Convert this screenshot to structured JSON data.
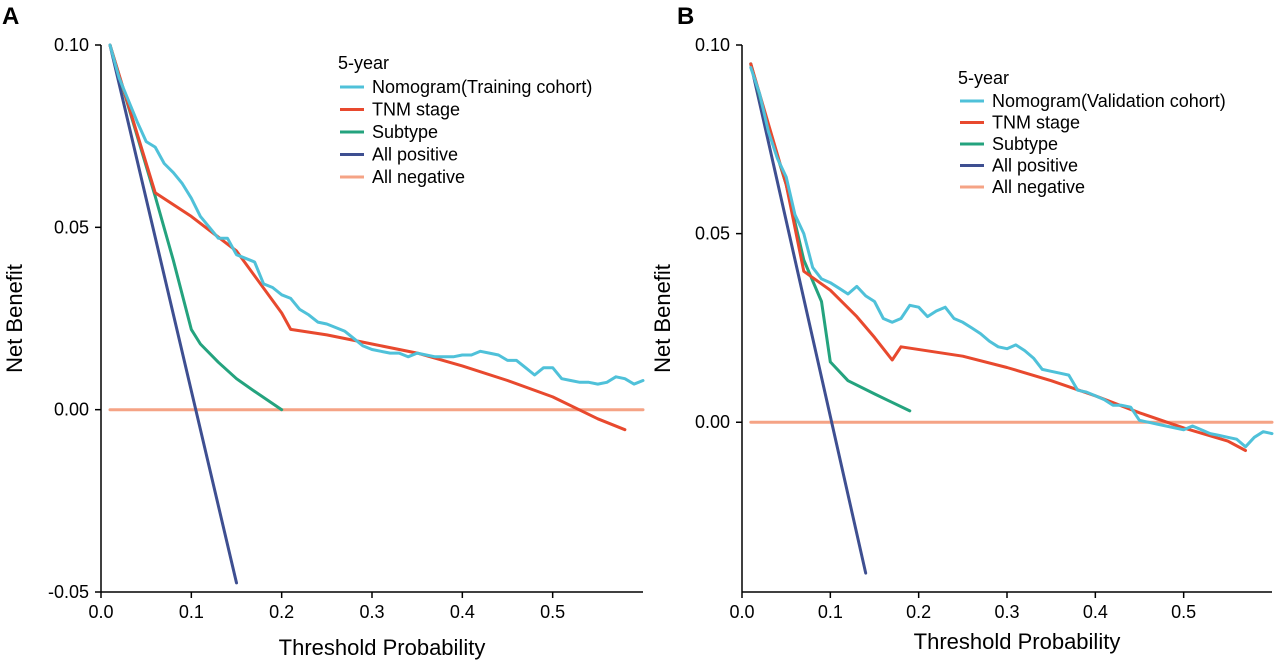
{
  "chart_data": [
    {
      "type": "line",
      "panel_label": "A",
      "title": "",
      "xlabel": "Threshold Probability",
      "ylabel": "Net Benefit",
      "xlim": [
        0,
        0.6
      ],
      "ylim": [
        -0.05,
        0.1
      ],
      "xticks": [
        0.0,
        0.1,
        0.2,
        0.3,
        0.4,
        0.5
      ],
      "xtick_labels": [
        "0.0",
        "0.1",
        "0.2",
        "0.3",
        "0.4",
        "0.5"
      ],
      "yticks": [
        -0.05,
        0.0,
        0.05,
        0.1
      ],
      "ytick_labels": [
        "-0.05",
        "0.00",
        "0.05",
        "0.10"
      ],
      "legend_title": "5-year",
      "legend_position": "top-right",
      "series": [
        {
          "name": "Nomogram(Training cohort)",
          "color": "#4FC1D9",
          "points": [
            [
              0.01,
              0.1
            ],
            [
              0.02,
              0.091
            ],
            [
              0.03,
              0.085
            ],
            [
              0.04,
              0.079
            ],
            [
              0.05,
              0.0735
            ],
            [
              0.06,
              0.072
            ],
            [
              0.07,
              0.0675
            ],
            [
              0.08,
              0.065
            ],
            [
              0.09,
              0.062
            ],
            [
              0.1,
              0.058
            ],
            [
              0.11,
              0.053
            ],
            [
              0.12,
              0.05
            ],
            [
              0.13,
              0.047
            ],
            [
              0.14,
              0.047
            ],
            [
              0.15,
              0.0425
            ],
            [
              0.16,
              0.0415
            ],
            [
              0.17,
              0.0405
            ],
            [
              0.18,
              0.0345
            ],
            [
              0.19,
              0.0335
            ],
            [
              0.2,
              0.0315
            ],
            [
              0.21,
              0.0305
            ],
            [
              0.22,
              0.0275
            ],
            [
              0.23,
              0.026
            ],
            [
              0.24,
              0.024
            ],
            [
              0.25,
              0.0235
            ],
            [
              0.26,
              0.0225
            ],
            [
              0.27,
              0.0215
            ],
            [
              0.28,
              0.0195
            ],
            [
              0.29,
              0.0175
            ],
            [
              0.3,
              0.0165
            ],
            [
              0.31,
              0.016
            ],
            [
              0.32,
              0.0155
            ],
            [
              0.33,
              0.0155
            ],
            [
              0.34,
              0.0145
            ],
            [
              0.35,
              0.0155
            ],
            [
              0.36,
              0.015
            ],
            [
              0.37,
              0.0145
            ],
            [
              0.38,
              0.0145
            ],
            [
              0.39,
              0.0145
            ],
            [
              0.4,
              0.015
            ],
            [
              0.41,
              0.015
            ],
            [
              0.42,
              0.016
            ],
            [
              0.43,
              0.0155
            ],
            [
              0.44,
              0.015
            ],
            [
              0.45,
              0.0135
            ],
            [
              0.46,
              0.0135
            ],
            [
              0.47,
              0.0115
            ],
            [
              0.48,
              0.0095
            ],
            [
              0.49,
              0.0115
            ],
            [
              0.5,
              0.0115
            ],
            [
              0.51,
              0.0085
            ],
            [
              0.52,
              0.008
            ],
            [
              0.53,
              0.0075
            ],
            [
              0.54,
              0.0075
            ],
            [
              0.55,
              0.007
            ],
            [
              0.56,
              0.0075
            ],
            [
              0.57,
              0.009
            ],
            [
              0.58,
              0.0085
            ],
            [
              0.59,
              0.007
            ],
            [
              0.6,
              0.008
            ]
          ]
        },
        {
          "name": "TNM stage",
          "color": "#E8492E",
          "points": [
            [
              0.01,
              0.1
            ],
            [
              0.06,
              0.0595
            ],
            [
              0.1,
              0.053
            ],
            [
              0.15,
              0.0435
            ],
            [
              0.2,
              0.0265
            ],
            [
              0.21,
              0.022
            ],
            [
              0.25,
              0.0205
            ],
            [
              0.3,
              0.018
            ],
            [
              0.35,
              0.0155
            ],
            [
              0.4,
              0.012
            ],
            [
              0.45,
              0.008
            ],
            [
              0.5,
              0.0035
            ],
            [
              0.55,
              -0.0025
            ],
            [
              0.58,
              -0.0055
            ]
          ]
        },
        {
          "name": "Subtype",
          "color": "#24A37E",
          "points": [
            [
              0.01,
              0.1
            ],
            [
              0.06,
              0.0585
            ],
            [
              0.08,
              0.041
            ],
            [
              0.1,
              0.022
            ],
            [
              0.11,
              0.018
            ],
            [
              0.13,
              0.013
            ],
            [
              0.15,
              0.0085
            ],
            [
              0.17,
              0.005
            ],
            [
              0.2,
              0.0
            ]
          ]
        },
        {
          "name": "All positive",
          "color": "#3E4F91",
          "points": [
            [
              0.01,
              0.1
            ],
            [
              0.15,
              -0.0475
            ]
          ]
        },
        {
          "name": "All negative",
          "color": "#F5A385",
          "points": [
            [
              0.01,
              0.0
            ],
            [
              0.6,
              0.0
            ]
          ]
        }
      ]
    },
    {
      "type": "line",
      "panel_label": "B",
      "title": "",
      "xlabel": "Threshold Probability",
      "ylabel": "Net Benefit",
      "xlim": [
        0,
        0.6
      ],
      "ylim": [
        -0.045,
        0.1
      ],
      "xticks": [
        0.0,
        0.1,
        0.2,
        0.3,
        0.4,
        0.5
      ],
      "xtick_labels": [
        "0.0",
        "0.1",
        "0.2",
        "0.3",
        "0.4",
        "0.5"
      ],
      "yticks": [
        0.0,
        0.05,
        0.1
      ],
      "ytick_labels": [
        "0.00",
        "0.05",
        "0.10"
      ],
      "legend_title": "5-year",
      "legend_position": "top-right",
      "series": [
        {
          "name": "Nomogram(Validation cohort)",
          "color": "#4FC1D9",
          "points": [
            [
              0.01,
              0.094
            ],
            [
              0.02,
              0.087
            ],
            [
              0.03,
              0.077
            ],
            [
              0.04,
              0.07
            ],
            [
              0.05,
              0.065
            ],
            [
              0.06,
              0.055
            ],
            [
              0.07,
              0.05
            ],
            [
              0.08,
              0.041
            ],
            [
              0.09,
              0.038
            ],
            [
              0.1,
              0.037
            ],
            [
              0.11,
              0.0355
            ],
            [
              0.12,
              0.034
            ],
            [
              0.13,
              0.036
            ],
            [
              0.14,
              0.0335
            ],
            [
              0.15,
              0.032
            ],
            [
              0.16,
              0.0275
            ],
            [
              0.17,
              0.0265
            ],
            [
              0.18,
              0.0275
            ],
            [
              0.19,
              0.031
            ],
            [
              0.2,
              0.0305
            ],
            [
              0.21,
              0.028
            ],
            [
              0.22,
              0.0295
            ],
            [
              0.23,
              0.0305
            ],
            [
              0.24,
              0.0275
            ],
            [
              0.25,
              0.0265
            ],
            [
              0.26,
              0.025
            ],
            [
              0.27,
              0.0235
            ],
            [
              0.28,
              0.0215
            ],
            [
              0.29,
              0.02
            ],
            [
              0.3,
              0.0195
            ],
            [
              0.31,
              0.0205
            ],
            [
              0.32,
              0.019
            ],
            [
              0.33,
              0.017
            ],
            [
              0.34,
              0.014
            ],
            [
              0.35,
              0.0135
            ],
            [
              0.36,
              0.013
            ],
            [
              0.37,
              0.0125
            ],
            [
              0.38,
              0.0085
            ],
            [
              0.39,
              0.008
            ],
            [
              0.4,
              0.007
            ],
            [
              0.41,
              0.006
            ],
            [
              0.42,
              0.0045
            ],
            [
              0.43,
              0.0045
            ],
            [
              0.44,
              0.004
            ],
            [
              0.45,
              0.0005
            ],
            [
              0.46,
              0.0
            ],
            [
              0.47,
              -0.0005
            ],
            [
              0.48,
              -0.001
            ],
            [
              0.49,
              -0.0015
            ],
            [
              0.5,
              -0.002
            ],
            [
              0.51,
              -0.001
            ],
            [
              0.52,
              -0.002
            ],
            [
              0.53,
              -0.003
            ],
            [
              0.54,
              -0.0035
            ],
            [
              0.55,
              -0.004
            ],
            [
              0.56,
              -0.0045
            ],
            [
              0.57,
              -0.0065
            ],
            [
              0.58,
              -0.004
            ],
            [
              0.59,
              -0.0025
            ],
            [
              0.6,
              -0.003
            ]
          ]
        },
        {
          "name": "TNM stage",
          "color": "#E8492E",
          "points": [
            [
              0.01,
              0.095
            ],
            [
              0.05,
              0.063
            ],
            [
              0.07,
              0.04
            ],
            [
              0.1,
              0.035
            ],
            [
              0.13,
              0.028
            ],
            [
              0.15,
              0.0225
            ],
            [
              0.17,
              0.0165
            ],
            [
              0.18,
              0.02
            ],
            [
              0.25,
              0.0175
            ],
            [
              0.3,
              0.0145
            ],
            [
              0.35,
              0.011
            ],
            [
              0.4,
              0.007
            ],
            [
              0.45,
              0.0025
            ],
            [
              0.5,
              -0.0015
            ],
            [
              0.55,
              -0.005
            ],
            [
              0.57,
              -0.0075
            ]
          ]
        },
        {
          "name": "Subtype",
          "color": "#24A37E",
          "points": [
            [
              0.01,
              0.095
            ],
            [
              0.03,
              0.078
            ],
            [
              0.05,
              0.063
            ],
            [
              0.07,
              0.043
            ],
            [
              0.09,
              0.032
            ],
            [
              0.1,
              0.016
            ],
            [
              0.12,
              0.011
            ],
            [
              0.15,
              0.0075
            ],
            [
              0.19,
              0.003
            ]
          ]
        },
        {
          "name": "All positive",
          "color": "#3E4F91",
          "points": [
            [
              0.01,
              0.095
            ],
            [
              0.14,
              -0.04
            ]
          ]
        },
        {
          "name": "All negative",
          "color": "#F5A385",
          "points": [
            [
              0.01,
              0.0
            ],
            [
              0.6,
              0.0
            ]
          ]
        }
      ]
    }
  ]
}
